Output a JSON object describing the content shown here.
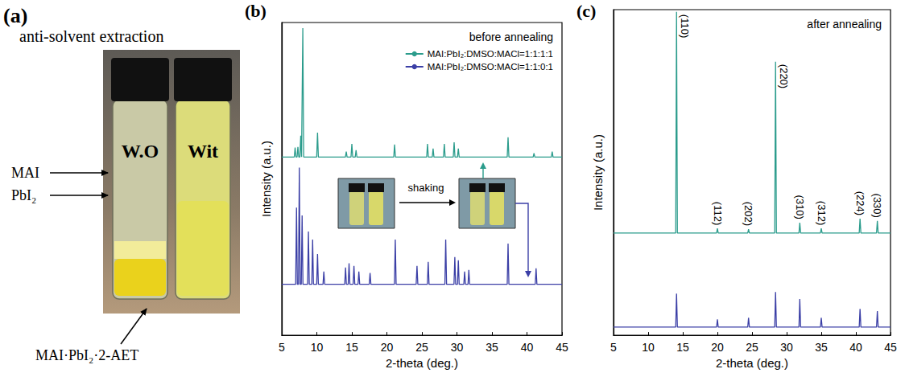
{
  "figure": {
    "panel_a": {
      "letter": "(a)",
      "title": "anti-solvent extraction",
      "vial_labels": [
        "W.O",
        "Wit"
      ],
      "labels": [
        "MAI",
        "PbI₂",
        "MAI·PbI₂·2-AET"
      ]
    }
  },
  "chart_data": [
    {
      "type": "line",
      "letter": "(b)",
      "title": "before annealing",
      "inset_text": "shaking",
      "x_label": "2-theta (deg.)",
      "y_label": "Intensity (a.u.)",
      "xlim": [
        5,
        45
      ],
      "xticks": [
        5,
        10,
        15,
        20,
        25,
        30,
        35,
        40,
        45
      ],
      "ylim": [
        0,
        100
      ],
      "yticks": [],
      "tick_labels": "x",
      "grid": false,
      "legend": "upper-right",
      "series": [
        {
          "name": "MAI:PbI₂:DMSO:MACl=1:1:1:1",
          "color": "#2b9c8c",
          "x": [
            5,
            6.78,
            6.9,
            7.02,
            7.18,
            7.3,
            7.42,
            7.58,
            7.7,
            7.82,
            7.88,
            8.0,
            8.12,
            9.98,
            10.1,
            10.22,
            14.08,
            14.2,
            14.32,
            14.88,
            15.0,
            15.12,
            15.48,
            15.6,
            15.72,
            20.98,
            21.1,
            21.22,
            25.68,
            25.8,
            25.92,
            26.48,
            26.6,
            26.72,
            28.08,
            28.2,
            28.32,
            29.48,
            29.6,
            29.72,
            30.08,
            30.2,
            30.32,
            37.18,
            37.3,
            37.42,
            40.88,
            41.0,
            41.12,
            43.48,
            43.6,
            43.72,
            45
          ],
          "values": [
            57,
            57,
            60.0,
            57,
            57,
            60.2,
            57,
            57,
            63.8,
            57,
            57,
            98.2,
            57,
            57,
            64.8,
            57,
            57,
            58.7,
            57,
            57,
            61.2,
            57,
            57,
            59.2,
            57,
            57,
            61,
            57,
            57,
            61.2,
            57,
            57,
            59.7,
            57,
            57,
            61.2,
            57,
            57,
            61.7,
            57,
            57,
            59.7,
            57,
            57,
            63.3,
            57,
            57,
            58.2,
            57,
            57,
            58.7,
            57,
            57
          ]
        },
        {
          "name": "MAI:PbI₂:DMSO:MACl=1:1:0:1",
          "color": "#3b3fa6",
          "x": [
            5,
            6.98,
            7.1,
            7.22,
            7.38,
            7.5,
            7.62,
            7.78,
            7.9,
            8.02,
            8.68,
            8.8,
            8.92,
            9.28,
            9.4,
            9.52,
            9.98,
            10.1,
            10.22,
            10.88,
            11.0,
            11.12,
            13.98,
            14.1,
            14.22,
            14.48,
            14.6,
            14.72,
            15.18,
            15.3,
            15.42,
            15.88,
            16.0,
            16.12,
            17.48,
            17.6,
            17.72,
            21.08,
            21.2,
            21.32,
            24.18,
            24.3,
            24.42,
            25.78,
            25.9,
            26.02,
            28.28,
            28.4,
            28.52,
            29.58,
            29.7,
            29.82,
            30.08,
            30.2,
            30.32,
            30.98,
            31.1,
            31.22,
            31.58,
            31.7,
            31.82,
            37.18,
            37.3,
            37.42,
            41.18,
            41.3,
            41.42,
            45
          ],
          "values": [
            16.3,
            16.3,
            40.8,
            16.3,
            16.3,
            53.6,
            16.3,
            16.3,
            38.3,
            16.3,
            16.3,
            33.2,
            16.3,
            16.3,
            30.6,
            16.3,
            16.3,
            26,
            16.3,
            16.3,
            20.4,
            16.3,
            16.3,
            21.7,
            16.3,
            16.3,
            23,
            16.3,
            16.3,
            22.2,
            16.3,
            16.3,
            20.4,
            16.3,
            16.3,
            19.9,
            16.3,
            16.3,
            30.6,
            16.3,
            16.3,
            22.2,
            16.3,
            16.3,
            23.5,
            16.3,
            16.3,
            30.6,
            16.3,
            16.3,
            25,
            16.3,
            16.3,
            24,
            16.3,
            16.3,
            20.4,
            16.3,
            16.3,
            20.9,
            16.3,
            16.3,
            29.3,
            16.3,
            16.3,
            21.4,
            16.3,
            16.3
          ]
        }
      ]
    },
    {
      "type": "line",
      "letter": "(c)",
      "title": "after annealing",
      "x_label": "2-theta (deg.)",
      "y_label": "Intensity (a.u.)",
      "xlim": [
        5,
        45
      ],
      "xticks": [
        5,
        10,
        15,
        20,
        25,
        30,
        35,
        40,
        45
      ],
      "ylim": [
        0,
        100
      ],
      "yticks": [],
      "tick_labels": "x",
      "grid": false,
      "series": [
        {
          "color": "#2b9c8c",
          "x": [
            5,
            13.98,
            14.1,
            14.22,
            19.88,
            20.0,
            20.12,
            24.38,
            24.5,
            24.62,
            28.28,
            28.4,
            28.52,
            31.78,
            31.9,
            32.02,
            34.88,
            35.0,
            35.12,
            40.48,
            40.6,
            40.72,
            42.98,
            43.1,
            43.22,
            45
          ],
          "values": [
            31.4,
            31.4,
            99.3,
            31.4,
            31.4,
            32.8,
            31.4,
            31.4,
            32.6,
            31.4,
            31.4,
            84,
            31.4,
            31.4,
            34.6,
            31.4,
            31.4,
            32.8,
            31.4,
            31.4,
            35.8,
            31.4,
            31.4,
            35.1,
            31.4,
            31.4
          ]
        },
        {
          "color": "#3b3fa6",
          "x": [
            5,
            13.98,
            14.1,
            14.22,
            19.88,
            20.0,
            20.12,
            24.38,
            24.5,
            24.62,
            28.28,
            28.4,
            28.52,
            31.78,
            31.9,
            32.02,
            34.88,
            35.0,
            35.12,
            40.48,
            40.6,
            40.72,
            42.98,
            43.1,
            43.22,
            45
          ],
          "values": [
            2.5,
            2.5,
            12.8,
            2.5,
            2.5,
            4.9,
            2.5,
            2.5,
            5.4,
            2.5,
            2.5,
            13.3,
            2.5,
            2.5,
            11.1,
            2.5,
            2.5,
            5.4,
            2.5,
            2.5,
            8.1,
            2.5,
            2.5,
            7.4,
            2.5,
            2.5
          ]
        }
      ],
      "annotations": [
        {
          "text": "(110)",
          "x": 14.1
        },
        {
          "text": "(112)",
          "x": 20.0
        },
        {
          "text": "(202)",
          "x": 24.5
        },
        {
          "text": "(220)",
          "x": 28.4
        },
        {
          "text": "(310)",
          "x": 31.9
        },
        {
          "text": "(312)",
          "x": 35.0
        },
        {
          "text": "(224)",
          "x": 40.6
        },
        {
          "text": "(330)",
          "x": 43.1
        }
      ]
    }
  ]
}
